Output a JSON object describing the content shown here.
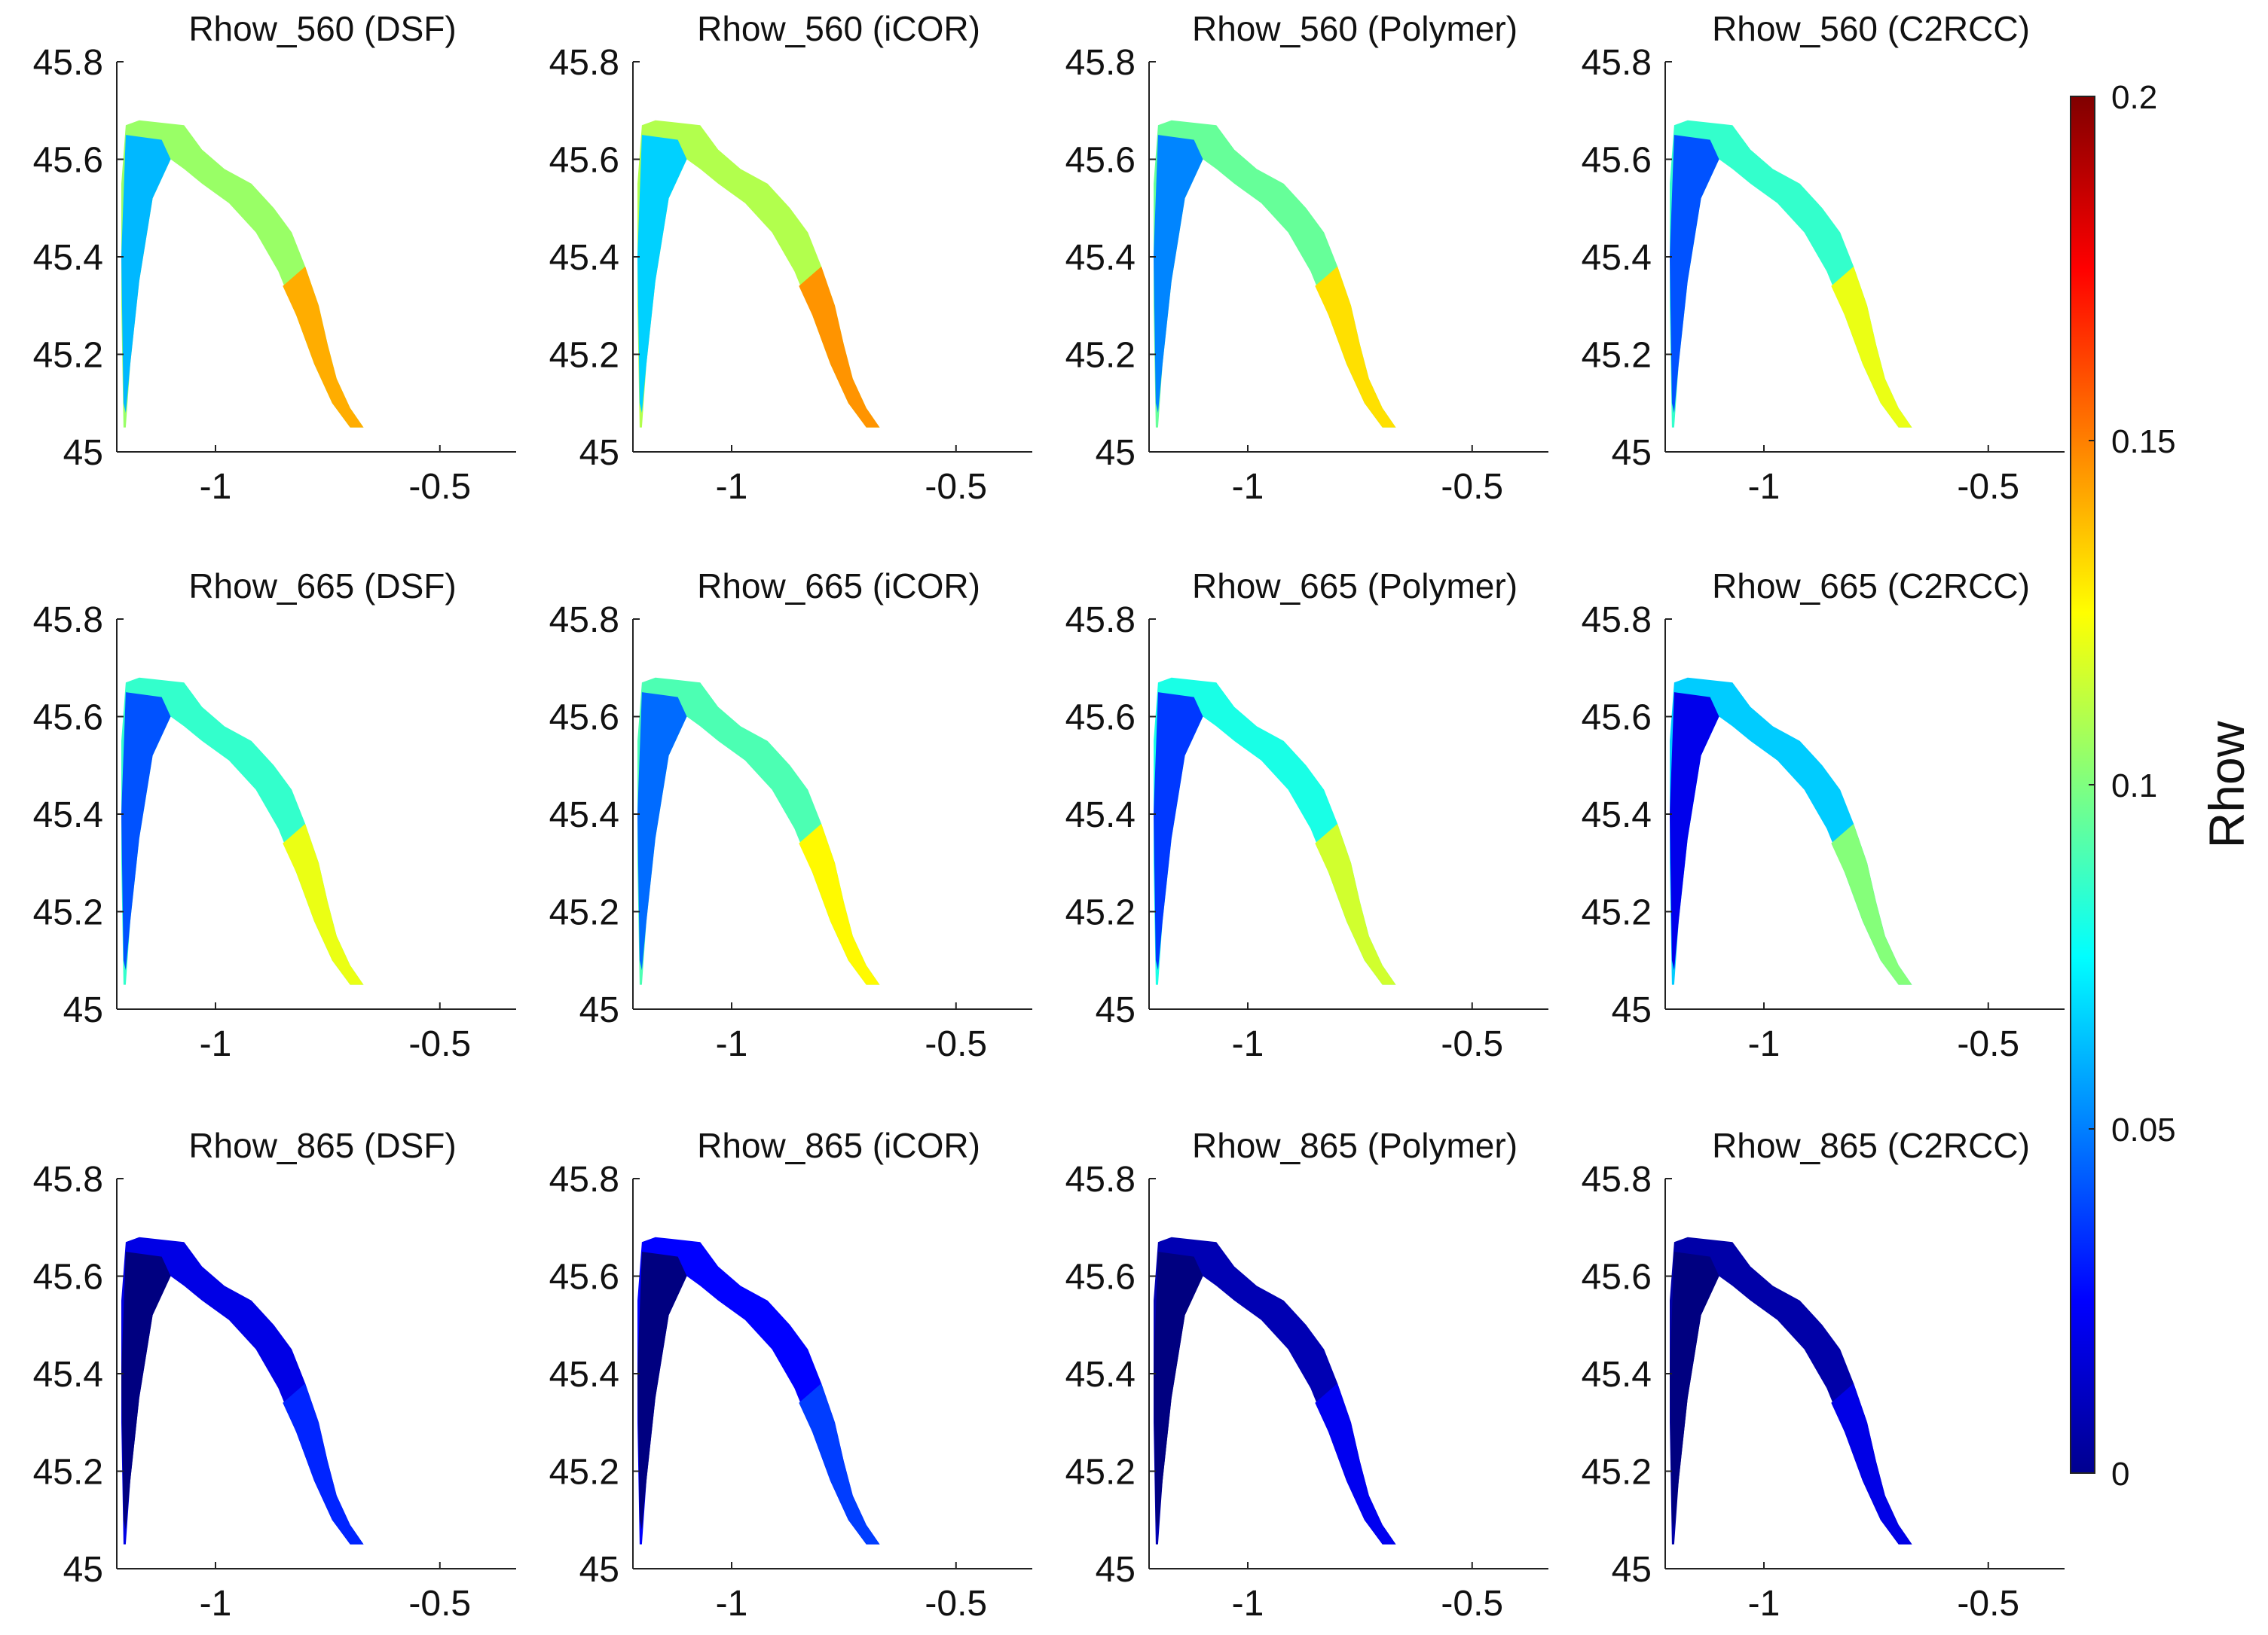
{
  "chart_data": {
    "type": "heatmap",
    "variable_label": "Rhow",
    "xlim": [
      -1.22,
      -0.33
    ],
    "ylim": [
      45.0,
      45.8
    ],
    "x_ticks": [
      -1,
      -0.5
    ],
    "x_tick_labels": [
      "-1",
      "-0.5"
    ],
    "y_ticks": [
      45.0,
      45.2,
      45.4,
      45.6,
      45.8
    ],
    "y_tick_labels": [
      "45",
      "45.2",
      "45.4",
      "45.6",
      "45.8"
    ],
    "colorbar": {
      "label": "Rhow",
      "range": [
        0,
        0.2
      ],
      "ticks": [
        0,
        0.05,
        0.1,
        0.15,
        0.2
      ],
      "tick_labels": [
        "0",
        "0.05",
        "0.1",
        "0.15",
        "0.2"
      ],
      "colormap": "jet"
    },
    "panels": [
      {
        "title": "Rhow_560 (DSF)",
        "band": "560",
        "method": "DSF",
        "mean_value": 0.105
      },
      {
        "title": "Rhow_560 (iCOR)",
        "band": "560",
        "method": "iCOR",
        "mean_value": 0.11
      },
      {
        "title": "Rhow_560 (Polymer)",
        "band": "560",
        "method": "Polymer",
        "mean_value": 0.095
      },
      {
        "title": "Rhow_560 (C2RCC)",
        "band": "560",
        "method": "C2RCC",
        "mean_value": 0.085
      },
      {
        "title": "Rhow_665 (DSF)",
        "band": "665",
        "method": "DSF",
        "mean_value": 0.085
      },
      {
        "title": "Rhow_665 (iCOR)",
        "band": "665",
        "method": "iCOR",
        "mean_value": 0.09
      },
      {
        "title": "Rhow_665 (Polymer)",
        "band": "665",
        "method": "Polymer",
        "mean_value": 0.08
      },
      {
        "title": "Rhow_665 (C2RCC)",
        "band": "665",
        "method": "C2RCC",
        "mean_value": 0.065
      },
      {
        "title": "Rhow_865 (DSF)",
        "band": "865",
        "method": "DSF",
        "mean_value": 0.02
      },
      {
        "title": "Rhow_865 (iCOR)",
        "band": "865",
        "method": "iCOR",
        "mean_value": 0.025
      },
      {
        "title": "Rhow_865 (Polymer)",
        "band": "865",
        "method": "Polymer",
        "mean_value": 0.01
      },
      {
        "title": "Rhow_865 (C2RCC)",
        "band": "865",
        "method": "C2RCC",
        "mean_value": 0.008
      }
    ]
  }
}
